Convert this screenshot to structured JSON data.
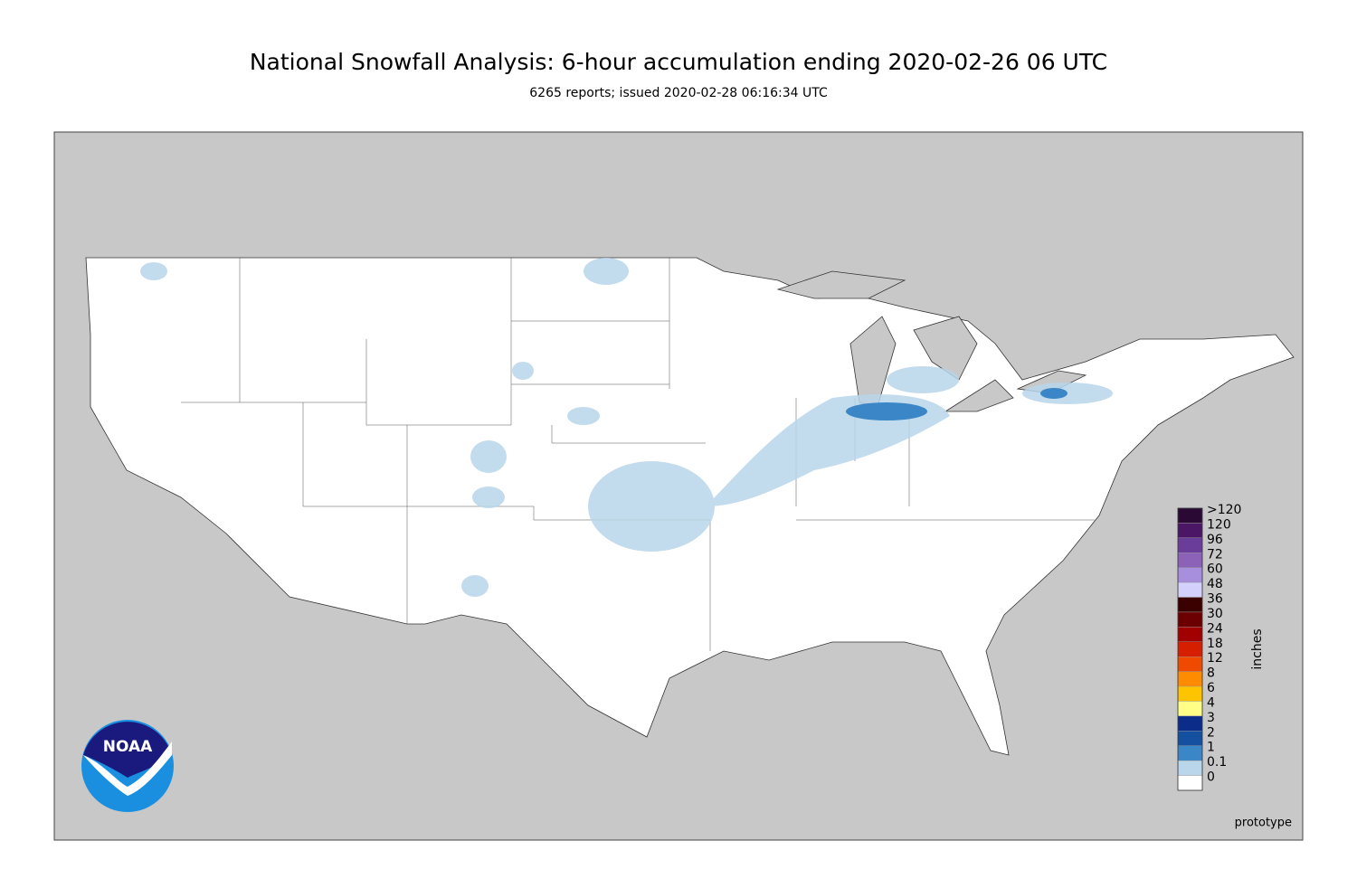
{
  "header": {
    "title": "National Snowfall Analysis: 6-hour accumulation ending 2020-02-26 06 UTC",
    "subtitle": "6265 reports; issued 2020-02-28 06:16:34 UTC"
  },
  "legend": {
    "unit": "inches",
    "items": [
      {
        "label": ">120",
        "color": "#2a0a35"
      },
      {
        "label": "120",
        "color": "#4b1666"
      },
      {
        "label": "96",
        "color": "#6a3d9a"
      },
      {
        "label": "72",
        "color": "#8c62b8"
      },
      {
        "label": "60",
        "color": "#a78fdd"
      },
      {
        "label": "48",
        "color": "#d3d0fb"
      },
      {
        "label": "36",
        "color": "#3b0000"
      },
      {
        "label": "30",
        "color": "#6c0000"
      },
      {
        "label": "24",
        "color": "#a20000"
      },
      {
        "label": "18",
        "color": "#d61f00"
      },
      {
        "label": "12",
        "color": "#f04a00"
      },
      {
        "label": "8",
        "color": "#ff8c00"
      },
      {
        "label": "6",
        "color": "#ffc400"
      },
      {
        "label": "4",
        "color": "#ffff88"
      },
      {
        "label": "3",
        "color": "#0c2c8a"
      },
      {
        "label": "2",
        "color": "#1550a0"
      },
      {
        "label": "1",
        "color": "#3a86c6"
      },
      {
        "label": "0.1",
        "color": "#b9d6ea"
      },
      {
        "label": "0",
        "color": "#ffffff"
      }
    ]
  },
  "footer": {
    "note": "prototype",
    "logo": "NOAA"
  }
}
